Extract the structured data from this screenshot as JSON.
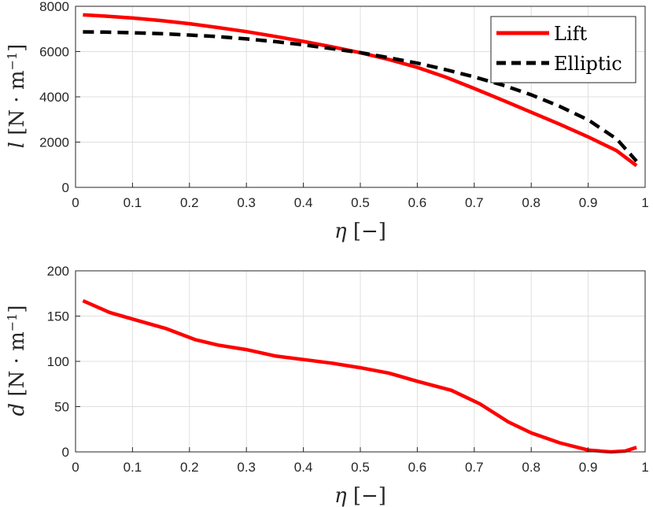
{
  "chart_data": [
    {
      "type": "line",
      "xlabel": "η [−]",
      "ylabel": "l [N · m−1]",
      "xlim": [
        0,
        1
      ],
      "ylim": [
        0,
        8000
      ],
      "xticks": [
        "0",
        "0.1",
        "0.2",
        "0.3",
        "0.4",
        "0.5",
        "0.6",
        "0.7",
        "0.8",
        "0.9",
        "1"
      ],
      "yticks": [
        "0",
        "2000",
        "4000",
        "6000",
        "8000"
      ],
      "grid": true,
      "legend_position": "top-right",
      "series": [
        {
          "name": "Lift",
          "style": "solid",
          "color": "#ff0000",
          "x": [
            0.013,
            0.05,
            0.1,
            0.15,
            0.2,
            0.25,
            0.3,
            0.35,
            0.4,
            0.45,
            0.5,
            0.55,
            0.6,
            0.65,
            0.7,
            0.75,
            0.8,
            0.85,
            0.9,
            0.95,
            0.985
          ],
          "y": [
            7620,
            7570,
            7480,
            7370,
            7230,
            7060,
            6880,
            6670,
            6450,
            6210,
            5950,
            5650,
            5300,
            4870,
            4370,
            3850,
            3320,
            2790,
            2230,
            1620,
            960
          ]
        },
        {
          "name": "Elliptic",
          "style": "dashed",
          "color": "#000000",
          "x": [
            0.013,
            0.05,
            0.1,
            0.15,
            0.2,
            0.25,
            0.3,
            0.35,
            0.4,
            0.45,
            0.5,
            0.55,
            0.6,
            0.65,
            0.7,
            0.75,
            0.8,
            0.85,
            0.9,
            0.95,
            0.985
          ],
          "y": [
            6870,
            6860,
            6830,
            6790,
            6730,
            6660,
            6560,
            6440,
            6300,
            6130,
            5950,
            5730,
            5490,
            5200,
            4880,
            4520,
            4090,
            3580,
            2980,
            2140,
            1160
          ]
        }
      ]
    },
    {
      "type": "line",
      "xlabel": "η [−]",
      "ylabel": "d [N · m−1]",
      "xlim": [
        0,
        1
      ],
      "ylim": [
        0,
        200
      ],
      "xticks": [
        "0",
        "0.1",
        "0.2",
        "0.3",
        "0.4",
        "0.5",
        "0.6",
        "0.7",
        "0.8",
        "0.9",
        "1"
      ],
      "yticks": [
        "0",
        "50",
        "100",
        "150",
        "200"
      ],
      "grid": true,
      "series": [
        {
          "style": "solid",
          "color": "#ff0000",
          "x": [
            0.013,
            0.06,
            0.11,
            0.16,
            0.21,
            0.25,
            0.3,
            0.35,
            0.4,
            0.45,
            0.5,
            0.55,
            0.6,
            0.66,
            0.71,
            0.76,
            0.8,
            0.85,
            0.9,
            0.94,
            0.965,
            0.985
          ],
          "y": [
            167,
            154,
            145,
            136,
            124,
            118,
            113,
            106,
            102,
            98,
            93,
            87,
            78,
            68,
            53,
            33,
            21,
            10,
            2,
            0,
            1,
            5
          ]
        }
      ]
    }
  ]
}
